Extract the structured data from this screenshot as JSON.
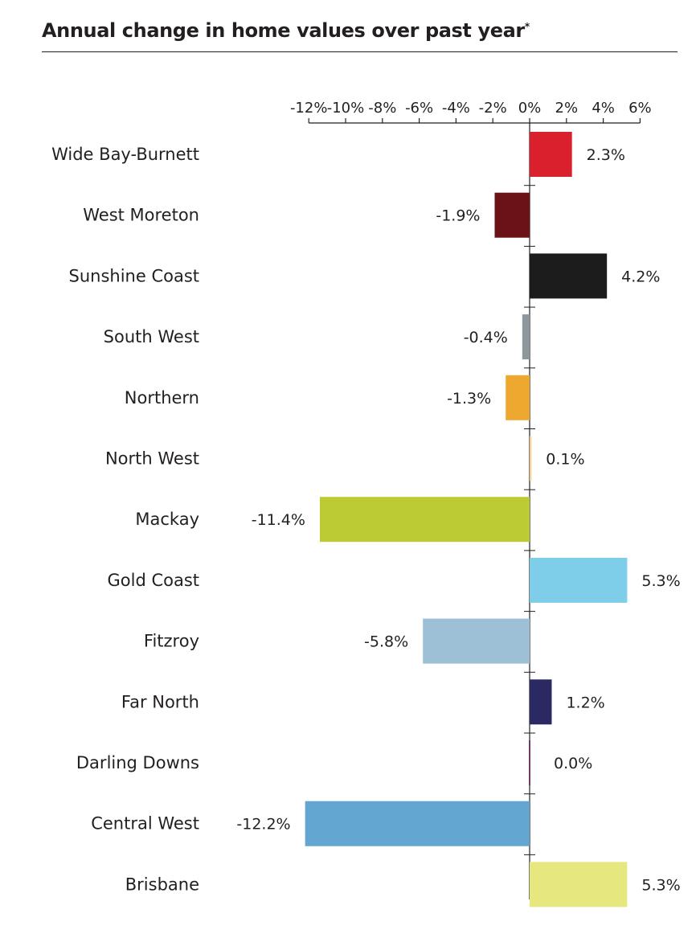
{
  "chart": {
    "title": "Annual change in home values over past year",
    "title_mark": "*"
  },
  "chart_data": {
    "type": "bar",
    "orientation": "horizontal",
    "title": "Annual change in home values over past year",
    "xlim": [
      -12,
      6
    ],
    "ticks": [
      {
        "value": -12,
        "label": "-12%"
      },
      {
        "value": -10,
        "label": "-10%"
      },
      {
        "value": -8,
        "label": "-8%"
      },
      {
        "value": -6,
        "label": "-6%"
      },
      {
        "value": -4,
        "label": "-4%"
      },
      {
        "value": -2,
        "label": "-2%"
      },
      {
        "value": 0,
        "label": "0%"
      },
      {
        "value": 2,
        "label": "2%"
      },
      {
        "value": 4,
        "label": "4%"
      },
      {
        "value": 6,
        "label": "6%"
      }
    ],
    "bars": [
      {
        "category": "Wide Bay-Burnett",
        "value": 2.3,
        "label": "2.3%",
        "color": "#d9202c"
      },
      {
        "category": "West Moreton",
        "value": -1.9,
        "label": "-1.9%",
        "color": "#6b1219"
      },
      {
        "category": "Sunshine Coast",
        "value": 4.2,
        "label": "4.2%",
        "color": "#1c1c1c"
      },
      {
        "category": "South West",
        "value": -0.4,
        "label": "-0.4%",
        "color": "#8e979c"
      },
      {
        "category": "Northern",
        "value": -1.3,
        "label": "-1.3%",
        "color": "#efa82f"
      },
      {
        "category": "North West",
        "value": 0.1,
        "label": "0.1%",
        "color": "#f9cf93"
      },
      {
        "category": "Mackay",
        "value": -11.4,
        "label": "-11.4%",
        "color": "#bccb33"
      },
      {
        "category": "Gold Coast",
        "value": 5.3,
        "label": "5.3%",
        "color": "#7ecde9"
      },
      {
        "category": "Fitzroy",
        "value": -5.8,
        "label": "-5.8%",
        "color": "#9ec0d7"
      },
      {
        "category": "Far North",
        "value": 1.2,
        "label": "1.2%",
        "color": "#2b2963"
      },
      {
        "category": "Darling Downs",
        "value": 0.0,
        "label": "0.0%",
        "color": "#6b3a6e"
      },
      {
        "category": "Central West",
        "value": -12.2,
        "label": "-12.2%",
        "color": "#62a6d1"
      },
      {
        "category": "Brisbane",
        "value": 5.3,
        "label": "5.3%",
        "color": "#e7e77f"
      }
    ],
    "grid": false,
    "legend": "none"
  }
}
